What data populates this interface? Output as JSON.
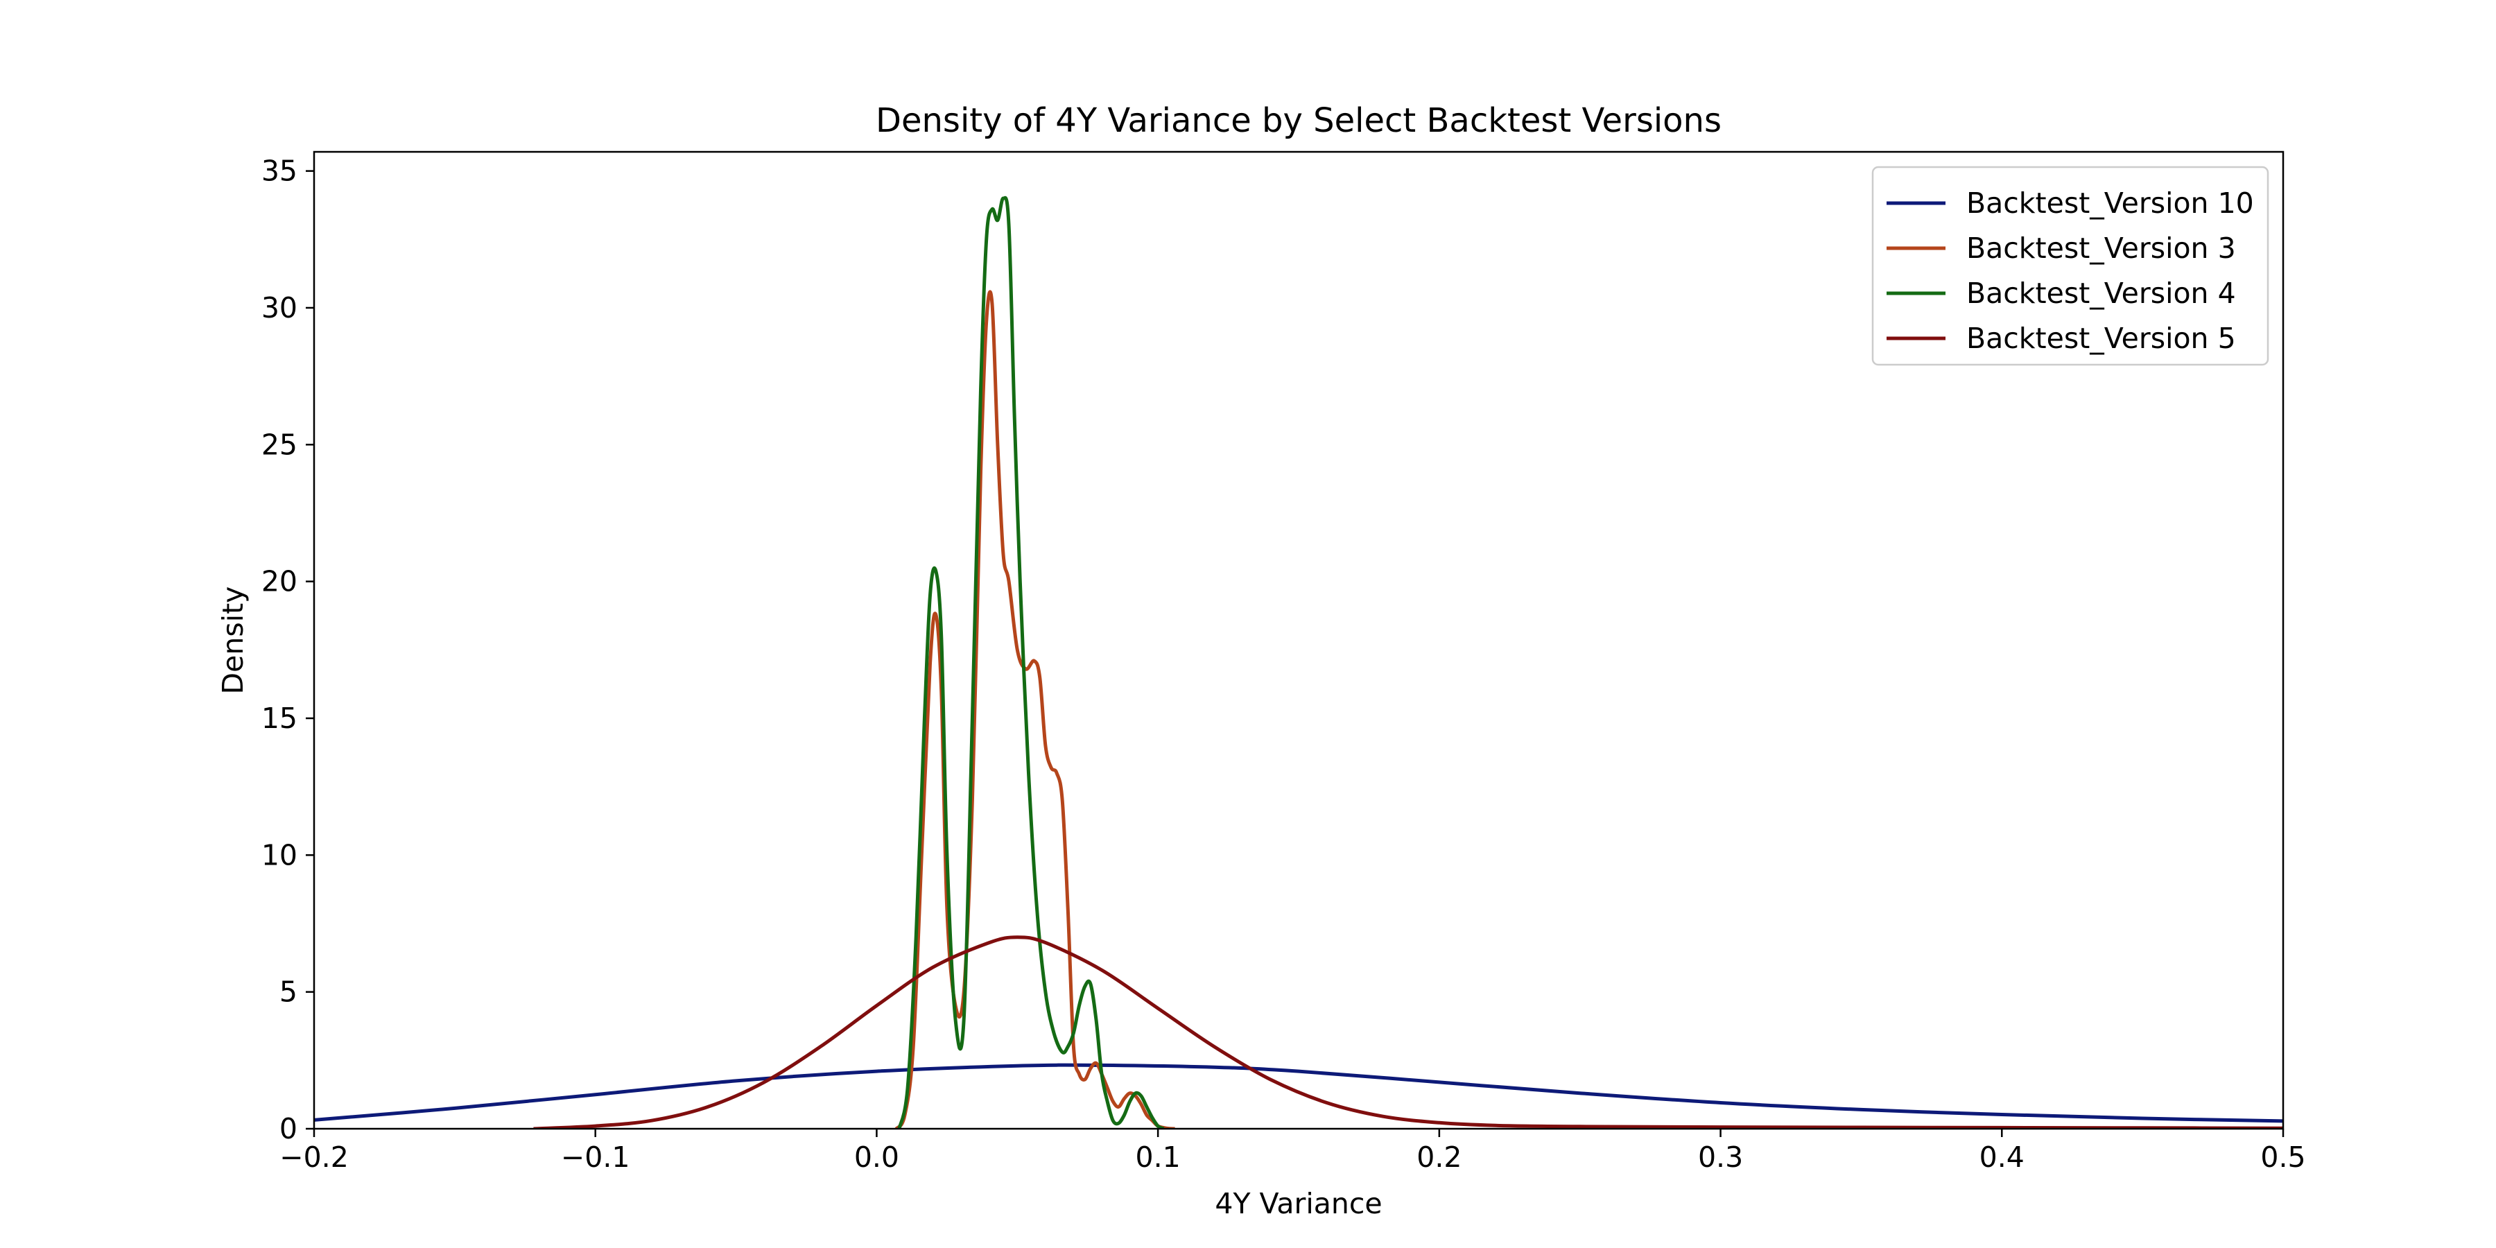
{
  "chart_data": {
    "type": "line",
    "title": "Density of 4Y Variance by Select Backtest Versions",
    "xlabel": "4Y Variance",
    "ylabel": "Density",
    "xlim": [
      -0.2,
      0.5
    ],
    "ylim": [
      0,
      35.7
    ],
    "xticks": [
      -0.2,
      -0.1,
      0.0,
      0.1,
      0.2,
      0.3,
      0.4,
      0.5
    ],
    "xtick_labels": [
      "−0.2",
      "−0.1",
      "0.0",
      "0.1",
      "0.2",
      "0.3",
      "0.4",
      "0.5"
    ],
    "yticks": [
      0,
      5,
      10,
      15,
      20,
      25,
      30,
      35
    ],
    "ytick_labels": [
      "0",
      "5",
      "10",
      "15",
      "20",
      "25",
      "30",
      "35"
    ],
    "grid": false,
    "legend_position": "top-right",
    "series": [
      {
        "name": "Backtest_Version 10",
        "color": "#0d1a78",
        "x": [
          -0.2,
          -0.15,
          -0.1,
          -0.05,
          0.0,
          0.05,
          0.08,
          0.12,
          0.15,
          0.2,
          0.25,
          0.3,
          0.35,
          0.4,
          0.45,
          0.5
        ],
        "y": [
          0.32,
          0.75,
          1.25,
          1.75,
          2.1,
          2.3,
          2.32,
          2.25,
          2.1,
          1.7,
          1.3,
          0.95,
          0.7,
          0.52,
          0.38,
          0.28
        ]
      },
      {
        "name": "Backtest_Version 3",
        "color": "#b5451b",
        "x": [
          0.007,
          0.01,
          0.013,
          0.016,
          0.019,
          0.021,
          0.023,
          0.025,
          0.028,
          0.031,
          0.034,
          0.037,
          0.039,
          0.041,
          0.043,
          0.045,
          0.047,
          0.05,
          0.053,
          0.056,
          0.058,
          0.06,
          0.062,
          0.064,
          0.066,
          0.068,
          0.07,
          0.072,
          0.074,
          0.076,
          0.078,
          0.08,
          0.082,
          0.084,
          0.086,
          0.088,
          0.09,
          0.092,
          0.094,
          0.096,
          0.098,
          0.1,
          0.103,
          0.106
        ],
        "y": [
          0.0,
          0.5,
          3,
          10,
          17,
          18.8,
          16,
          8,
          4.5,
          5,
          12,
          24,
          29.5,
          30.2,
          25,
          21,
          20,
          17.5,
          16.8,
          17.1,
          16.5,
          14,
          13.2,
          13,
          12,
          8,
          3,
          2,
          1.8,
          2.2,
          2.4,
          2,
          1.5,
          1,
          0.8,
          1.1,
          1.3,
          1.2,
          0.9,
          0.5,
          0.3,
          0.1,
          0.02,
          0.0
        ]
      },
      {
        "name": "Backtest_Version 4",
        "color": "#146b14",
        "x": [
          0.008,
          0.011,
          0.014,
          0.017,
          0.019,
          0.021,
          0.023,
          0.025,
          0.028,
          0.031,
          0.034,
          0.037,
          0.039,
          0.041,
          0.043,
          0.045,
          0.047,
          0.049,
          0.051,
          0.054,
          0.057,
          0.06,
          0.063,
          0.066,
          0.068,
          0.07,
          0.072,
          0.074,
          0.076,
          0.078,
          0.08,
          0.082,
          0.084,
          0.086,
          0.088,
          0.09,
          0.092,
          0.094,
          0.096,
          0.098,
          0.1,
          0.102
        ],
        "y": [
          0.0,
          1.5,
          7,
          15,
          19.5,
          20.4,
          18,
          10,
          4,
          4,
          15,
          27,
          32.5,
          33.6,
          33.2,
          34.0,
          33,
          26,
          20,
          13,
          8,
          5,
          3.5,
          2.8,
          3,
          3.5,
          4.5,
          5.2,
          5.3,
          4,
          2,
          1,
          0.3,
          0.2,
          0.5,
          1,
          1.3,
          1.2,
          0.8,
          0.4,
          0.1,
          0.0
        ]
      },
      {
        "name": "Backtest_Version 5",
        "color": "#800e0e",
        "x": [
          -0.122,
          -0.1,
          -0.08,
          -0.06,
          -0.04,
          -0.02,
          0.0,
          0.02,
          0.04,
          0.05,
          0.06,
          0.08,
          0.1,
          0.12,
          0.14,
          0.16,
          0.18,
          0.2,
          0.22,
          0.25,
          0.3,
          0.35,
          0.4,
          0.45,
          0.5
        ],
        "y": [
          0.0,
          0.1,
          0.3,
          0.8,
          1.7,
          3.0,
          4.5,
          5.9,
          6.8,
          7.0,
          6.8,
          5.8,
          4.4,
          3.0,
          1.8,
          0.95,
          0.45,
          0.22,
          0.12,
          0.08,
          0.06,
          0.05,
          0.04,
          0.03,
          0.02
        ]
      }
    ]
  }
}
